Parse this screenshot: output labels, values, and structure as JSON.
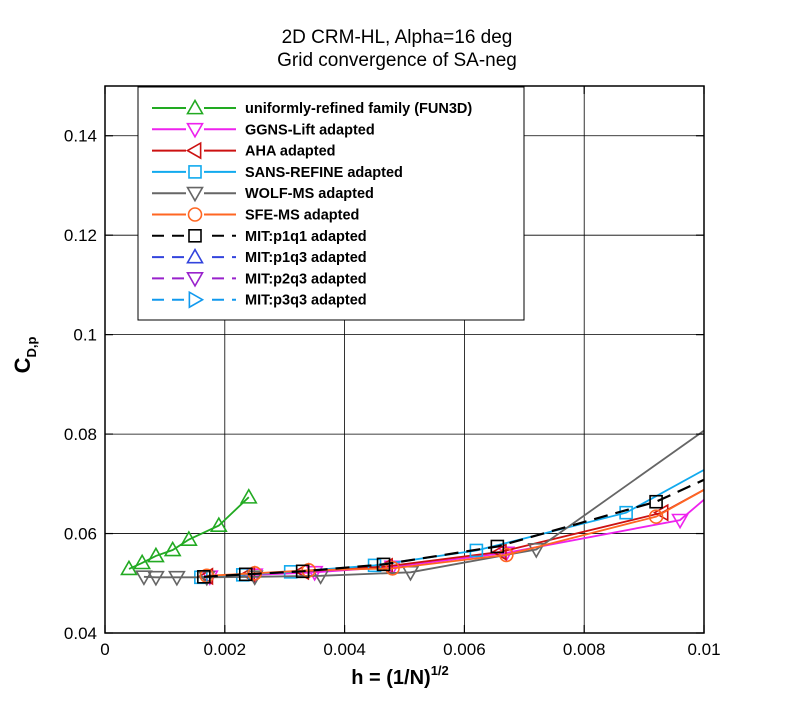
{
  "chart_data": {
    "type": "line",
    "title_lines": [
      "2D CRM-HL, Alpha=16 deg",
      "Grid convergence of SA-neg"
    ],
    "xlabel": {
      "main": "h = (1/N)",
      "sup": "1/2"
    },
    "ylabel": {
      "main": "C",
      "sub": "D,p"
    },
    "xlim": [
      0,
      0.01
    ],
    "ylim": [
      0.04,
      0.15
    ],
    "x_ticks": [
      0,
      0.002,
      0.004,
      0.006,
      0.008,
      0.01
    ],
    "x_tick_labels": [
      "0",
      "0.002",
      "0.004",
      "0.006",
      "0.008",
      "0.01"
    ],
    "y_ticks": [
      0.04,
      0.06,
      0.08,
      0.1,
      0.12,
      0.14
    ],
    "y_tick_labels": [
      "0.04",
      "0.06",
      "0.08",
      "0.1",
      "0.12",
      "0.14"
    ],
    "grid": true,
    "legend_position": "top-left",
    "series": [
      {
        "name": "uniformly-refined family (FUN3D)",
        "color": "#22aa22",
        "dash": "solid",
        "marker": "triangle-up",
        "x": [
          0.0004,
          0.00062,
          0.00085,
          0.00113,
          0.0014,
          0.0019,
          0.0024
        ],
        "y": [
          0.0529,
          0.0541,
          0.0555,
          0.0567,
          0.0588,
          0.0616,
          0.0673
        ],
        "line_x": [
          0.0004,
          0.00062,
          0.00085,
          0.00113,
          0.0014,
          0.0019,
          0.0024
        ],
        "line_y": [
          0.0529,
          0.0541,
          0.0555,
          0.0567,
          0.0588,
          0.0616,
          0.0673
        ]
      },
      {
        "name": "GGNS-Lift adapted",
        "color": "#ee22ee",
        "dash": "solid",
        "marker": "triangle-down",
        "x": [
          0.00175,
          0.0025,
          0.0035,
          0.0048,
          0.0067,
          0.0096
        ],
        "y": [
          0.0513,
          0.0517,
          0.0522,
          0.0533,
          0.0561,
          0.0627
        ],
        "line_x": [
          0.00175,
          0.0025,
          0.0035,
          0.0048,
          0.0067,
          0.0096,
          0.01
        ],
        "line_y": [
          0.0513,
          0.0517,
          0.0522,
          0.0533,
          0.0561,
          0.0627,
          0.0668
        ]
      },
      {
        "name": "AHA adapted",
        "color": "#cc1111",
        "dash": "solid",
        "marker": "triangle-left",
        "x": [
          0.0017,
          0.0024,
          0.0033,
          0.0047,
          0.0066,
          0.0093
        ],
        "y": [
          0.0514,
          0.0518,
          0.0524,
          0.0534,
          0.0563,
          0.0642
        ],
        "line_x": [
          0.0017,
          0.0024,
          0.0033,
          0.0047,
          0.0066,
          0.0093,
          0.01
        ],
        "line_y": [
          0.0514,
          0.0518,
          0.0524,
          0.0534,
          0.0563,
          0.0642,
          0.0688
        ]
      },
      {
        "name": "SANS-REFINE adapted",
        "color": "#11aaee",
        "dash": "solid",
        "marker": "square",
        "x": [
          0.0016,
          0.0023,
          0.0031,
          0.0045,
          0.0062,
          0.0087
        ],
        "y": [
          0.0512,
          0.0517,
          0.0523,
          0.0536,
          0.0566,
          0.0642
        ],
        "line_x": [
          0.0016,
          0.0023,
          0.0031,
          0.0045,
          0.0062,
          0.0087,
          0.01
        ],
        "line_y": [
          0.0512,
          0.0517,
          0.0523,
          0.0536,
          0.0566,
          0.0642,
          0.0728
        ]
      },
      {
        "name": "WOLF-MS adapted",
        "color": "#666666",
        "dash": "solid",
        "marker": "triangle-down",
        "x": [
          0.00065,
          0.00085,
          0.0012,
          0.0017,
          0.0025,
          0.0036,
          0.0051,
          0.0072
        ],
        "y": [
          0.0513,
          0.0512,
          0.0512,
          0.0512,
          0.0513,
          0.0515,
          0.0522,
          0.0568
        ],
        "line_x": [
          0.00065,
          0.00085,
          0.0012,
          0.0017,
          0.0025,
          0.0036,
          0.0051,
          0.0072,
          0.01
        ],
        "line_y": [
          0.0513,
          0.0512,
          0.0512,
          0.0512,
          0.0513,
          0.0515,
          0.0522,
          0.0568,
          0.0807
        ]
      },
      {
        "name": "SFE-MS adapted",
        "color": "#ff6622",
        "dash": "solid",
        "marker": "circle",
        "x": [
          0.0017,
          0.0025,
          0.0034,
          0.0048,
          0.0067,
          0.0092
        ],
        "y": [
          0.0515,
          0.052,
          0.0526,
          0.053,
          0.0557,
          0.0634
        ],
        "line_x": [
          0.0017,
          0.0025,
          0.0034,
          0.0048,
          0.0067,
          0.0092,
          0.01
        ],
        "line_y": [
          0.0515,
          0.052,
          0.0526,
          0.053,
          0.0557,
          0.0634,
          0.0688
        ]
      },
      {
        "name": "MIT:p1q1 adapted",
        "color": "#000000",
        "dash": "dashed",
        "marker": "square",
        "x": [
          0.00165,
          0.00235,
          0.0033,
          0.00465,
          0.00655,
          0.0092
        ],
        "y": [
          0.0513,
          0.0518,
          0.0524,
          0.0538,
          0.0574,
          0.0664
        ],
        "line_x": [
          0.00165,
          0.00235,
          0.0033,
          0.00465,
          0.00655,
          0.0092,
          0.01
        ],
        "line_y": [
          0.0513,
          0.0518,
          0.0524,
          0.0538,
          0.0574,
          0.0664,
          0.0708
        ]
      },
      {
        "name": "MIT:p1q3 adapted",
        "color": "#3344dd",
        "dash": "dashed",
        "marker": "triangle-up",
        "x": [],
        "y": [],
        "line_x": [],
        "line_y": []
      },
      {
        "name": "MIT:p2q3 adapted",
        "color": "#9922cc",
        "dash": "dashed",
        "marker": "triangle-down",
        "x": [],
        "y": [],
        "line_x": [],
        "line_y": []
      },
      {
        "name": "MIT:p3q3 adapted",
        "color": "#1199ee",
        "dash": "dashed",
        "marker": "triangle-right",
        "x": [],
        "y": [],
        "line_x": [],
        "line_y": []
      }
    ]
  }
}
